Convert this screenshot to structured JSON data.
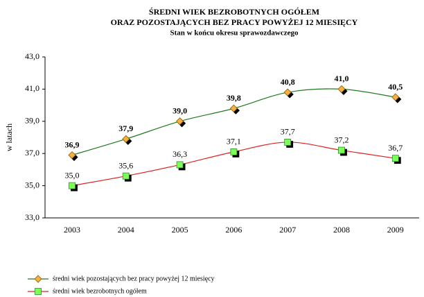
{
  "chart_data": {
    "type": "line",
    "title": [
      "ŚREDNI WIEK BEZROBOTNYCH OGÓŁEM",
      "ORAZ POZOSTAJĄCYCH BEZ PRACY POWYŻEJ 12 MIESIĘCY"
    ],
    "subtitle": "Stan w końcu okresu sprawozdawczego",
    "y_label": "w latach",
    "categories": [
      "2003",
      "2004",
      "2005",
      "2006",
      "2007",
      "2008",
      "2009"
    ],
    "series": [
      {
        "name": "średni wiek pozostających bez pracy powyżej 12 miesięcy",
        "color": "#1f7a1f",
        "marker": "diamond",
        "marker_color": "#f5b041",
        "values": [
          36.9,
          37.9,
          39.0,
          39.8,
          40.8,
          41.0,
          40.5
        ],
        "value_labels": [
          "36,9",
          "37,9",
          "39,0",
          "39,8",
          "40,8",
          "41,0",
          "40,5"
        ]
      },
      {
        "name": "średni wiek bezrobotnych ogółem",
        "color": "#e02020",
        "marker": "square",
        "marker_color": "#7dff5a",
        "values": [
          35.0,
          35.6,
          36.3,
          37.1,
          37.7,
          37.2,
          36.7
        ],
        "value_labels": [
          "35,0",
          "35,6",
          "36,3",
          "37,1",
          "37,7",
          "37,2",
          "36,7"
        ]
      }
    ],
    "ylim": [
      33,
      43
    ],
    "yticks": [
      {
        "value": 33,
        "label": "33,0"
      },
      {
        "value": 35,
        "label": "35,0"
      },
      {
        "value": 37,
        "label": "37,0"
      },
      {
        "value": 39,
        "label": "39,0"
      },
      {
        "value": 41,
        "label": "41,0"
      },
      {
        "value": 43,
        "label": "43,0"
      }
    ],
    "grid": false,
    "legend": "bottom"
  }
}
